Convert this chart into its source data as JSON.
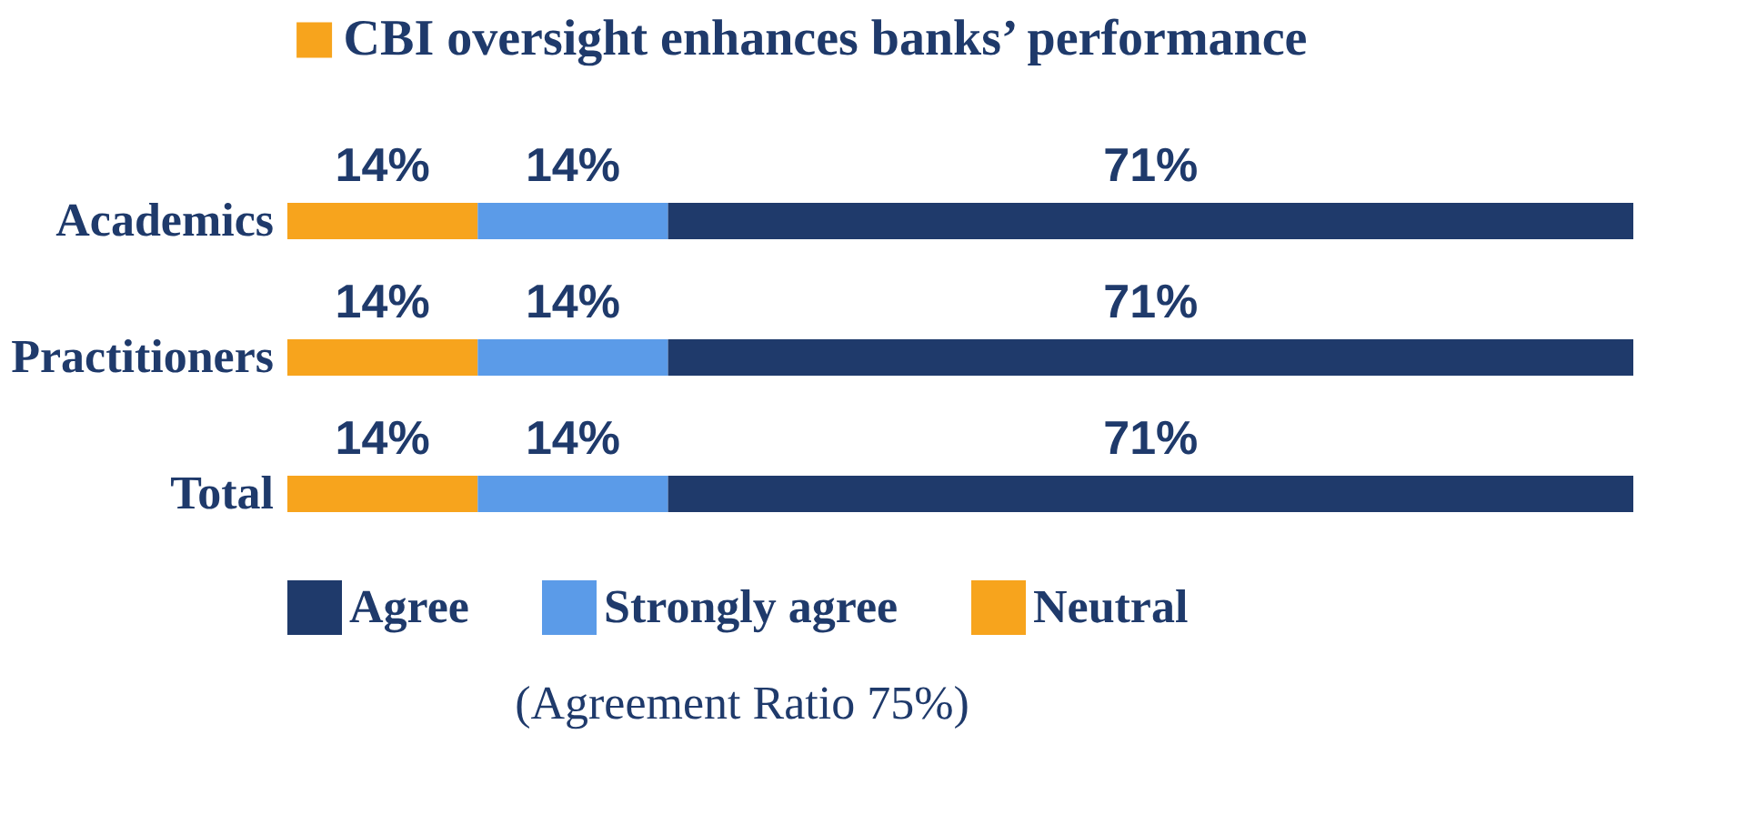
{
  "chart_data": {
    "type": "bar",
    "orientation": "horizontal",
    "stacked": true,
    "title": "CBI oversight enhances banks’ performance",
    "categories": [
      "Academics",
      "Practitioners",
      "Total"
    ],
    "series": [
      {
        "name": "Neutral",
        "color": "#f7a41d",
        "values": [
          14,
          14,
          14
        ],
        "value_labels": [
          "14%",
          "14%",
          "14%"
        ]
      },
      {
        "name": "Strongly agree",
        "color": "#5b9be8",
        "values": [
          14,
          14,
          14
        ],
        "value_labels": [
          "14%",
          "14%",
          "14%"
        ]
      },
      {
        "name": "Agree",
        "color": "#1f3a6b",
        "values": [
          71,
          71,
          71
        ],
        "value_labels": [
          "71%",
          "71%",
          "71%"
        ]
      }
    ],
    "legend": "bottom",
    "tick_labels": "y",
    "grid": false,
    "annotations": [
      "(Agreement Ratio 75%)"
    ]
  }
}
